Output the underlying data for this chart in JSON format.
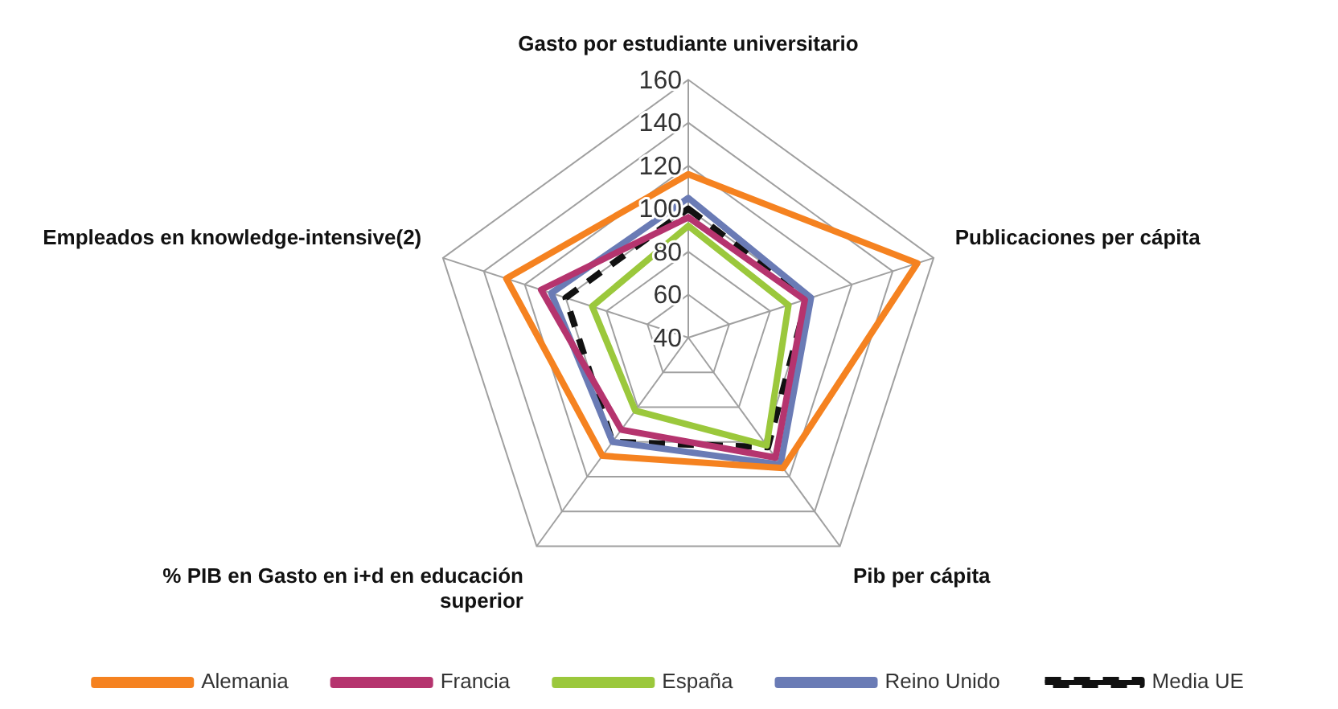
{
  "chart_data": {
    "type": "radar",
    "categories": [
      "Gasto por estudiante universitario",
      "Publicaciones per cápita",
      "Pib per cápita",
      "% PIB en Gasto en i+d en educación superior",
      "Empleados en knowledge-intensive(2)"
    ],
    "series": [
      {
        "name": "Alemania",
        "color": "#f58220",
        "values": [
          116,
          152,
          115,
          108,
          129
        ]
      },
      {
        "name": "Francia",
        "color": "#b5346e",
        "values": [
          96,
          97,
          109,
          93,
          112
        ]
      },
      {
        "name": "España",
        "color": "#9bc83c",
        "values": [
          92,
          89,
          102,
          82,
          87
        ]
      },
      {
        "name": "Reino Unido",
        "color": "#6a7bb5",
        "values": [
          105,
          100,
          113,
          100,
          107
        ]
      },
      {
        "name": "Media UE",
        "color": "#111111",
        "values": [
          100,
          98,
          103,
          100,
          100
        ],
        "line_style": "dashed"
      }
    ],
    "ylim": [
      40,
      160
    ],
    "yticks": [
      40,
      60,
      80,
      100,
      120,
      140,
      160
    ],
    "grid": true,
    "legend": "bottom",
    "marker": "none",
    "line_style": "solid"
  }
}
